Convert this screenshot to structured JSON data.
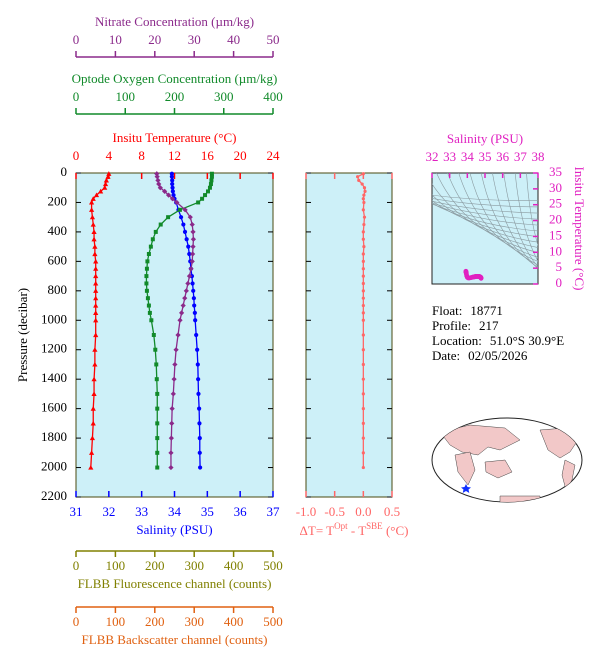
{
  "chart_data": [
    {
      "type": "profile",
      "ylabel": "Pressure (decibar)",
      "ylim": [
        0,
        2200
      ],
      "y_inverted": true,
      "yticks": [
        0,
        200,
        400,
        600,
        800,
        1000,
        1200,
        1400,
        1600,
        1800,
        2000,
        2200
      ],
      "pressure": [
        5,
        25,
        50,
        75,
        100,
        125,
        150,
        175,
        200,
        250,
        300,
        350,
        400,
        450,
        500,
        550,
        600,
        650,
        700,
        750,
        800,
        850,
        900,
        950,
        1000,
        1100,
        1200,
        1300,
        1400,
        1500,
        1600,
        1700,
        1800,
        1900,
        2000
      ],
      "x_axes": [
        {
          "label": "Insitu Temperature (°C)",
          "color": "#ff0000",
          "side": "top",
          "xlim": [
            0,
            24
          ],
          "xticks": [
            0,
            4,
            8,
            12,
            16,
            20,
            24
          ]
        },
        {
          "label": "Optode Oxygen Concentration (µm/kg)",
          "color": "#118a2a",
          "side": "top",
          "xlim": [
            0,
            400
          ],
          "xticks": [
            0,
            100,
            200,
            300,
            400
          ]
        },
        {
          "label": "Nitrate Concentration (µm/kg)",
          "color": "#8b2a8b",
          "side": "top",
          "xlim": [
            0,
            50
          ],
          "xticks": [
            0,
            10,
            20,
            30,
            40,
            50
          ]
        },
        {
          "label": "Salinity (PSU)",
          "color": "#0000ff",
          "side": "bottom",
          "xlim": [
            31,
            37
          ],
          "xticks": [
            31,
            32,
            33,
            34,
            35,
            36,
            37
          ]
        },
        {
          "label": "FLBB Fluorescence channel (counts)",
          "color": "#808000",
          "side": "bottom",
          "xlim": [
            0,
            500
          ],
          "xticks": [
            0,
            100,
            200,
            300,
            400,
            500
          ]
        },
        {
          "label": "FLBB Backscatter channel (counts)",
          "color": "#e06010",
          "side": "bottom",
          "xlim": [
            0,
            500
          ],
          "xticks": [
            0,
            100,
            200,
            300,
            400,
            500
          ]
        }
      ],
      "series": [
        {
          "axis": 0,
          "color": "#ff0000",
          "marker": "triangle",
          "values": [
            4.0,
            3.9,
            3.7,
            3.6,
            3.5,
            3.0,
            2.5,
            2.1,
            1.9,
            1.9,
            2.0,
            2.1,
            2.2,
            2.2,
            2.3,
            2.3,
            2.4,
            2.4,
            2.4,
            2.4,
            2.4,
            2.4,
            2.4,
            2.4,
            2.4,
            2.4,
            2.3,
            2.3,
            2.2,
            2.2,
            2.1,
            2.1,
            2.0,
            1.9,
            1.8
          ]
        },
        {
          "axis": 3,
          "color": "#0000ff",
          "marker": "circle",
          "values": [
            33.92,
            33.92,
            33.93,
            33.93,
            33.94,
            33.95,
            33.97,
            34.0,
            34.05,
            34.12,
            34.2,
            34.27,
            34.32,
            34.37,
            34.42,
            34.45,
            34.48,
            34.5,
            34.53,
            34.55,
            34.57,
            34.59,
            34.6,
            34.62,
            34.63,
            34.66,
            34.69,
            34.71,
            34.72,
            34.73,
            34.75,
            34.76,
            34.77,
            34.77,
            34.78
          ]
        },
        {
          "axis": 1,
          "color": "#118a2a",
          "marker": "square",
          "values": [
            276,
            276,
            275,
            274,
            272,
            268,
            262,
            256,
            248,
            211,
            187,
            172,
            162,
            156,
            152,
            148,
            145,
            144,
            143,
            143,
            144,
            146,
            148,
            150,
            153,
            158,
            161,
            163,
            164,
            165,
            165,
            165,
            165,
            165,
            165
          ]
        },
        {
          "axis": 2,
          "color": "#8b2a8b",
          "marker": "diamond",
          "values": [
            20.5,
            20.6,
            20.8,
            21.0,
            21.4,
            22.5,
            23.5,
            24.5,
            25.6,
            27.7,
            29.0,
            29.5,
            29.7,
            29.8,
            29.7,
            29.6,
            29.5,
            29.2,
            28.8,
            28.4,
            28.0,
            27.6,
            27.2,
            26.8,
            26.4,
            25.9,
            25.4,
            25.1,
            24.9,
            24.7,
            24.4,
            24.3,
            24.2,
            24.1,
            24.1
          ]
        }
      ]
    },
    {
      "type": "profile",
      "xlabel": [
        "ΔT= T",
        "Opt",
        " - T",
        "SBE",
        " (°C)"
      ],
      "color": "#ff6666",
      "ylim": [
        0,
        2200
      ],
      "y_inverted": true,
      "xlim": [
        -1,
        0.5
      ],
      "xticks": [
        {
          "value": -1,
          "label": "-1.0"
        },
        -0.5,
        {
          "value": 0,
          "label": "0.0"
        },
        0.5
      ],
      "values": [
        0.0,
        -0.1,
        -0.08,
        -0.02,
        0.02,
        0.03,
        0.01,
        0.0,
        0.01,
        0.0,
        0.02,
        0.01,
        0.0,
        0.0,
        0.01,
        0.0,
        0.0,
        0.0,
        0.0,
        0.0,
        0.0,
        0.0,
        0.0,
        0.0,
        0.0,
        0.0,
        0.0,
        0.0,
        0.0,
        0.0,
        0.0,
        0.0,
        0.0,
        0.0,
        0.0
      ]
    },
    {
      "type": "ts",
      "xlabel": "Salinity (PSU)",
      "ylabel": "Insitu Temperature (°C)",
      "color": "#e020c0",
      "xlim": [
        32,
        38
      ],
      "xticks": [
        32,
        33,
        34,
        35,
        36,
        37,
        38
      ],
      "ylim": [
        0,
        35
      ],
      "yticks": [
        0,
        5,
        10,
        15,
        20,
        25,
        30,
        35
      ]
    }
  ],
  "float_info": [
    {
      "label": "Float:",
      "value": "18771"
    },
    {
      "label": "Profile:",
      "value": "217"
    },
    {
      "label": "Location:",
      "value": "51.0°S  30.9°E"
    },
    {
      "label": "Date:",
      "value": "02/05/2026"
    }
  ]
}
